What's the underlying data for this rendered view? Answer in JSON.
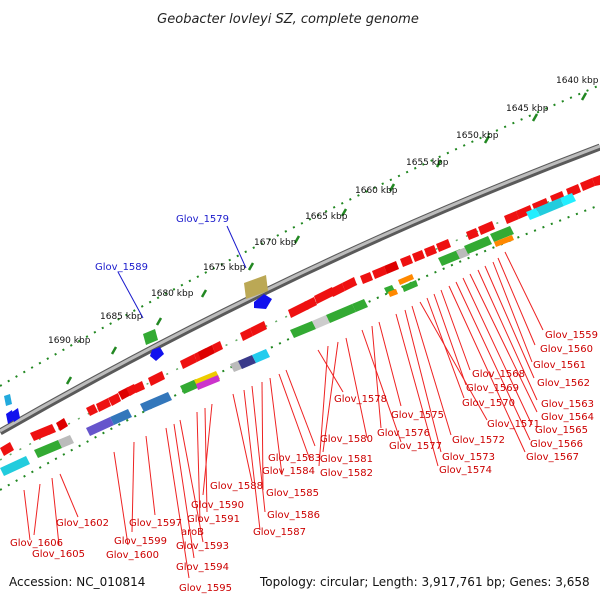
{
  "title": "Geobacter lovleyi SZ, complete genome",
  "accession": "Accession: NC_010814",
  "topology": "Topology: circular; Length: 3,917,761 bp; Genes: 3,658",
  "colors": {
    "forward_gene": "#ee1111",
    "backbone": "#888888",
    "tick": "#228822",
    "label_red": "#cc0000",
    "label_blue": "#1a1acc"
  },
  "ruler": {
    "ticks": [
      "1640 kbp",
      "1645 kbp",
      "1650 kbp",
      "1655 kbp",
      "1660 kbp",
      "1665 kbp",
      "1670 kbp",
      "1675 kbp",
      "1680 kbp",
      "1685 kbp",
      "1690 kbp"
    ]
  },
  "labels": {
    "blue": [
      "Glov_1579",
      "Glov_1589"
    ],
    "red": [
      "Glov_1559",
      "Glov_1560",
      "Glov_1561",
      "Glov_1562",
      "Glov_1563",
      "Glov_1564",
      "Glov_1565",
      "Glov_1566",
      "Glov_1567",
      "Glov_1568",
      "Glov_1569",
      "Glov_1570",
      "Glov_1571",
      "Glov_1572",
      "Glov_1573",
      "Glov_1574",
      "Glov_1575",
      "Glov_1576",
      "Glov_1577",
      "Glov_1578",
      "Glov_1580",
      "Glov_1581",
      "Glov_1582",
      "Glov_1583",
      "Glov_1584",
      "Glov_1585",
      "Glov_1586",
      "Glov_1587",
      "Glov_1588",
      "Glov_1590",
      "Glov_1591",
      "aroB",
      "Glov_1593",
      "Glov_1594",
      "Glov_1595",
      "Glov_1597",
      "Glov_1599",
      "Glov_1600",
      "Glov_1602",
      "Glov_1605",
      "Glov_1606"
    ]
  }
}
